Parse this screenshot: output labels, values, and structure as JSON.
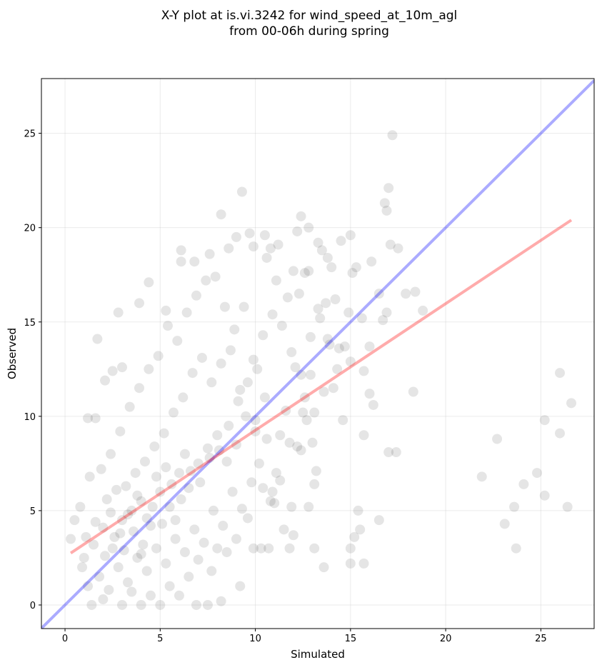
{
  "chart_data": {
    "type": "scatter",
    "title": [
      "X-Y plot at is.vi.3242 for wind_speed_at_10m_agl",
      "from 00-06h during spring"
    ],
    "x_label": "Simulated",
    "y_label": "Observed",
    "xlim": [
      -1.24,
      27.8
    ],
    "ylim": [
      -1.25,
      27.9
    ],
    "xticks": [
      0,
      5,
      10,
      15,
      20,
      25
    ],
    "yticks": [
      0,
      5,
      10,
      15,
      20,
      25
    ],
    "grid": true,
    "series": [
      {
        "type": "scatter",
        "color": "#000000",
        "alpha": 0.1,
        "x": [
          1,
          1.5,
          2,
          2.5,
          3,
          3.5,
          4,
          4.5,
          5,
          5.5,
          6,
          6.5,
          7,
          7.5,
          8,
          8.5,
          9,
          9.5,
          10,
          10.5,
          1.2,
          1.8,
          2.3,
          2.8,
          3.3,
          3.8,
          4.3,
          4.8,
          5.3,
          5.8,
          6.3,
          6.8,
          7.3,
          7.8,
          8.3,
          8.8,
          9.3,
          9.8,
          10.3,
          10.8,
          0.5,
          0.8,
          1.3,
          1.9,
          2.4,
          2.9,
          3.4,
          3.9,
          4.4,
          4.9,
          5.4,
          5.9,
          6.4,
          6.9,
          7.4,
          7.9,
          8.4,
          8.9,
          9.4,
          9.9,
          10.4,
          10.9,
          11.4,
          11.9,
          12.4,
          12.9,
          13.4,
          13.9,
          14.4,
          12.6,
          11.3,
          11.8,
          12.2,
          12.7,
          13.1,
          13.6,
          14.1,
          14.6,
          11.1,
          10.9,
          2.1,
          2.6,
          3.1,
          3.6,
          4.1,
          4.6,
          5.1,
          5.6,
          6.1,
          6.6,
          7.1,
          7.6,
          8.1,
          8.6,
          9.1,
          9.6,
          10.1,
          10.6,
          11.6,
          12.1,
          3.2,
          3.7,
          4.2,
          4.7,
          5.2,
          5.7,
          6.2,
          6.7,
          7.2,
          7.7,
          8.2,
          8.7,
          9.2,
          2.2,
          2.7,
          1.6,
          1.1,
          0.9,
          1.4,
          0.3,
          4.5,
          5.5,
          6.5,
          7.5,
          8.2,
          7,
          8,
          9.2,
          9,
          9.9,
          3,
          3.5,
          4,
          5,
          6,
          2,
          6.9,
          7.7,
          8.5,
          9.6,
          10,
          10.2,
          10.4,
          11,
          11.5,
          11.9,
          10.7,
          11.3,
          12.4,
          13,
          3,
          2.5,
          2.1,
          1.6,
          1.2,
          2.8,
          4.4,
          3.9,
          5.3,
          6.1,
          6.1,
          7.6,
          6.8,
          8.6,
          9,
          9.7,
          9.9,
          10.6,
          10.8,
          11.1,
          12,
          12.6,
          12.8,
          13.3,
          13.5,
          13.8,
          14,
          14.5,
          11.7,
          12.3,
          13.7,
          14.2,
          13.3,
          14.7,
          13.8,
          12.9,
          14.3,
          15,
          12.5,
          3.3,
          3.8,
          4.3,
          4.8,
          5.3,
          5.8,
          6.3,
          2.9,
          2.4,
          4,
          17.2,
          9.3,
          17,
          16.8,
          16.9,
          8.2,
          12.4,
          12.2,
          12.8,
          15,
          10.5,
          11.2,
          17.1,
          17.5,
          16.1,
          15.1,
          15.3,
          17.9,
          18.4,
          16.5,
          18.8,
          16.9,
          16.7,
          15.6,
          14.9,
          16,
          15.7,
          16,
          16.2,
          18.3,
          17,
          17.4,
          15.7,
          22.7,
          21.9,
          24.8,
          24.1,
          26,
          26.6,
          25.2,
          26,
          25.2,
          26.4,
          23.6,
          23.1,
          23.7,
          16.5,
          15.4,
          15.5,
          15.2,
          15,
          15,
          15.7,
          13.6,
          11.8,
          12,
          13.1,
          12.8,
          13.1,
          13.2,
          1.7
        ],
        "values": [
          2.5,
          3.2,
          4.1,
          3,
          4.5,
          5,
          5.5,
          4.2,
          6,
          5.2,
          7,
          6.2,
          7.5,
          8.3,
          9,
          7.6,
          8.5,
          10,
          9.2,
          11,
          1,
          1.5,
          0.8,
          2,
          1.2,
          2.5,
          1.8,
          3,
          2.2,
          3.5,
          2.8,
          4,
          3.3,
          5,
          4.2,
          6,
          5.1,
          6.5,
          3,
          5.5,
          4.5,
          5.2,
          6.8,
          7.2,
          8,
          9.2,
          10.5,
          11.5,
          12.5,
          13.2,
          14.8,
          14,
          15.5,
          16.4,
          17.2,
          17.4,
          15.8,
          14.6,
          15.8,
          13,
          14.3,
          15.4,
          14.8,
          13.4,
          12.2,
          14.2,
          15.2,
          13.8,
          13.6,
          11,
          9,
          8.6,
          8.4,
          9.8,
          10.2,
          11.3,
          11.5,
          9.8,
          7,
          6,
          2.6,
          3.6,
          2.9,
          3.9,
          3.2,
          5.2,
          4.3,
          6.4,
          5.6,
          7.1,
          6.5,
          7.8,
          8.2,
          9.5,
          10.8,
          11.8,
          12.5,
          8.8,
          10.3,
          12.6,
          6.3,
          7,
          7.6,
          8.4,
          9.1,
          10.2,
          11,
          12.3,
          13.1,
          11.8,
          12.8,
          13.5,
          11.4,
          5.6,
          6.1,
          4.4,
          3.6,
          2,
          0,
          3.5,
          0.5,
          1,
          1.5,
          0,
          0.2,
          2.4,
          3,
          1,
          3.5,
          3,
          0,
          0.7,
          0,
          0,
          0.5,
          0.3,
          0,
          1.8,
          2.8,
          4.6,
          9.8,
          7.5,
          6.2,
          5.4,
          4,
          5.2,
          3,
          6.6,
          8.2,
          8.6,
          12.6,
          12.4,
          11.9,
          9.9,
          9.9,
          15.5,
          17.1,
          16,
          15.6,
          18.8,
          18.2,
          18.6,
          18.2,
          18.9,
          19.5,
          19.7,
          19,
          18.4,
          18.9,
          17.2,
          17.7,
          17.6,
          17.7,
          19.2,
          18.8,
          18.4,
          17.9,
          19.3,
          16.3,
          16.5,
          16,
          16.2,
          15.7,
          13.7,
          14.1,
          12.2,
          12.5,
          12.9,
          10.2,
          4.8,
          5.8,
          4.6,
          6.8,
          7.3,
          4.5,
          8,
          3.8,
          4.9,
          2.7,
          24.9,
          21.9,
          22.1,
          21.3,
          20.9,
          20.7,
          20.6,
          19.8,
          20,
          19.6,
          19.6,
          19.1,
          19.1,
          18.9,
          18.2,
          17.6,
          17.9,
          16.5,
          16.6,
          16.5,
          15.6,
          15.5,
          15.1,
          15.2,
          15.5,
          13.7,
          12.4,
          11.2,
          10.6,
          11.3,
          8.1,
          8.1,
          9,
          8.8,
          6.8,
          7,
          6.4,
          12.3,
          10.7,
          9.8,
          9.1,
          5.8,
          5.2,
          5.2,
          4.3,
          3,
          4.5,
          5,
          4,
          3.6,
          3,
          2.2,
          2.2,
          2,
          3,
          3.7,
          3,
          5.2,
          6.4,
          7.1,
          14.1
        ]
      },
      {
        "type": "line",
        "color": "#0000ff",
        "alpha": 0.33,
        "x": [
          -1.24,
          27.8
        ],
        "values": [
          -1.24,
          27.8
        ]
      },
      {
        "type": "line",
        "color": "#ff0000",
        "alpha": 0.33,
        "x": [
          0.3,
          26.6
        ],
        "values": [
          2.75,
          20.4
        ]
      }
    ]
  }
}
